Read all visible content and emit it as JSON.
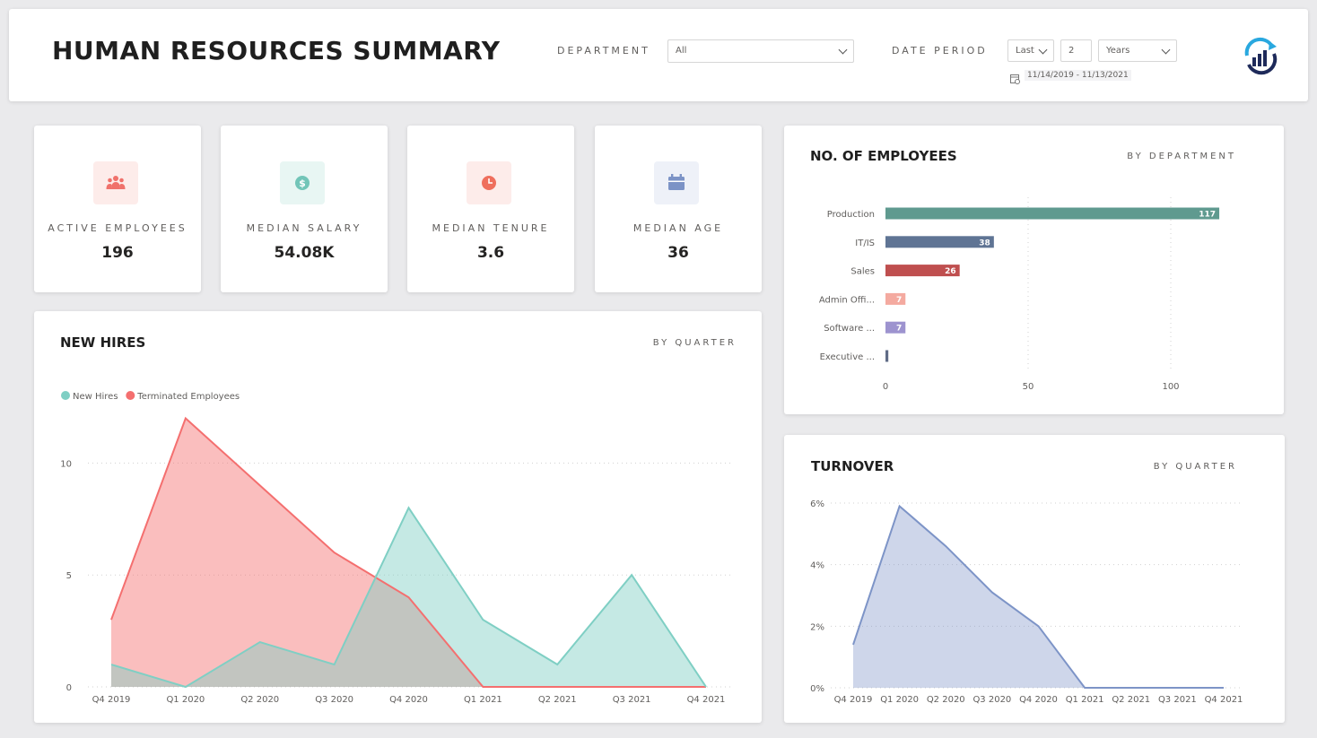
{
  "header": {
    "title": "HUMAN RESOURCES SUMMARY",
    "department_label": "DEPARTMENT",
    "department_value": "All",
    "date_period_label": "DATE PERIOD",
    "period_mode": "Last",
    "period_count": "2",
    "period_unit": "Years",
    "date_range": "11/14/2019 - 11/13/2021"
  },
  "kpis": [
    {
      "label": "ACTIVE EMPLOYEES",
      "value": "196",
      "icon": "people-icon",
      "color": "#f0716b",
      "bg": "#fdecea"
    },
    {
      "label": "MEDIAN SALARY",
      "value": "54.08K",
      "icon": "dollar-icon",
      "color": "#72c5b8",
      "bg": "#e8f6f3"
    },
    {
      "label": "MEDIAN TENURE",
      "value": "3.6",
      "icon": "clock-icon",
      "color": "#ef6f5d",
      "bg": "#fdecea"
    },
    {
      "label": "MEDIAN AGE",
      "value": "36",
      "icon": "calendar-icon",
      "color": "#7c93c6",
      "bg": "#eef1f8"
    }
  ],
  "new_hires": {
    "title": "NEW HIRES",
    "subtitle": "BY QUARTER"
  },
  "employees": {
    "title": "NO. OF EMPLOYEES",
    "subtitle": "BY DEPARTMENT"
  },
  "turnover": {
    "title": "TURNOVER",
    "subtitle": "BY QUARTER"
  },
  "chart_data": [
    {
      "type": "area",
      "title": "NEW HIRES",
      "categories": [
        "Q4 2019",
        "Q1 2020",
        "Q2 2020",
        "Q3 2020",
        "Q4 2020",
        "Q1 2021",
        "Q2 2021",
        "Q3 2021",
        "Q4 2021"
      ],
      "series": [
        {
          "name": "New Hires",
          "color": "#7fcfc4",
          "values": [
            1,
            0,
            2,
            1,
            8,
            3,
            1,
            5,
            0
          ]
        },
        {
          "name": "Terminated Employees",
          "color": "#f46f6f",
          "values": [
            3,
            12,
            9,
            6,
            4,
            0,
            0,
            0,
            0
          ]
        }
      ],
      "ylim": [
        0,
        12.5
      ],
      "yticks": [
        0,
        5,
        10
      ],
      "legend": "top-left",
      "grid": true
    },
    {
      "type": "bar",
      "orientation": "horizontal",
      "title": "NO. OF EMPLOYEES",
      "categories": [
        "Production",
        "IT/IS",
        "Sales",
        "Admin Offi...",
        "Software ...",
        "Executive ..."
      ],
      "values": [
        117,
        38,
        26,
        7,
        7,
        1
      ],
      "colors": [
        "#5f9a8f",
        "#5f7494",
        "#bf4f4f",
        "#f4aaa0",
        "#9d93cf",
        "#5f6b86"
      ],
      "xticks": [
        0,
        50,
        100
      ],
      "xlim": [
        0,
        125
      ],
      "grid": true
    },
    {
      "type": "area",
      "title": "TURNOVER",
      "categories": [
        "Q4 2019",
        "Q1 2020",
        "Q2 2020",
        "Q3 2020",
        "Q4 2020",
        "Q1 2021",
        "Q2 2021",
        "Q3 2021",
        "Q4 2021"
      ],
      "series": [
        {
          "color": "#7d94c7",
          "values": [
            1.4,
            5.9,
            4.6,
            3.1,
            2.0,
            0,
            0,
            0,
            0
          ]
        }
      ],
      "ylim": [
        0,
        6
      ],
      "yticks": [
        "0%",
        "2%",
        "4%",
        "6%"
      ],
      "grid": true
    }
  ]
}
